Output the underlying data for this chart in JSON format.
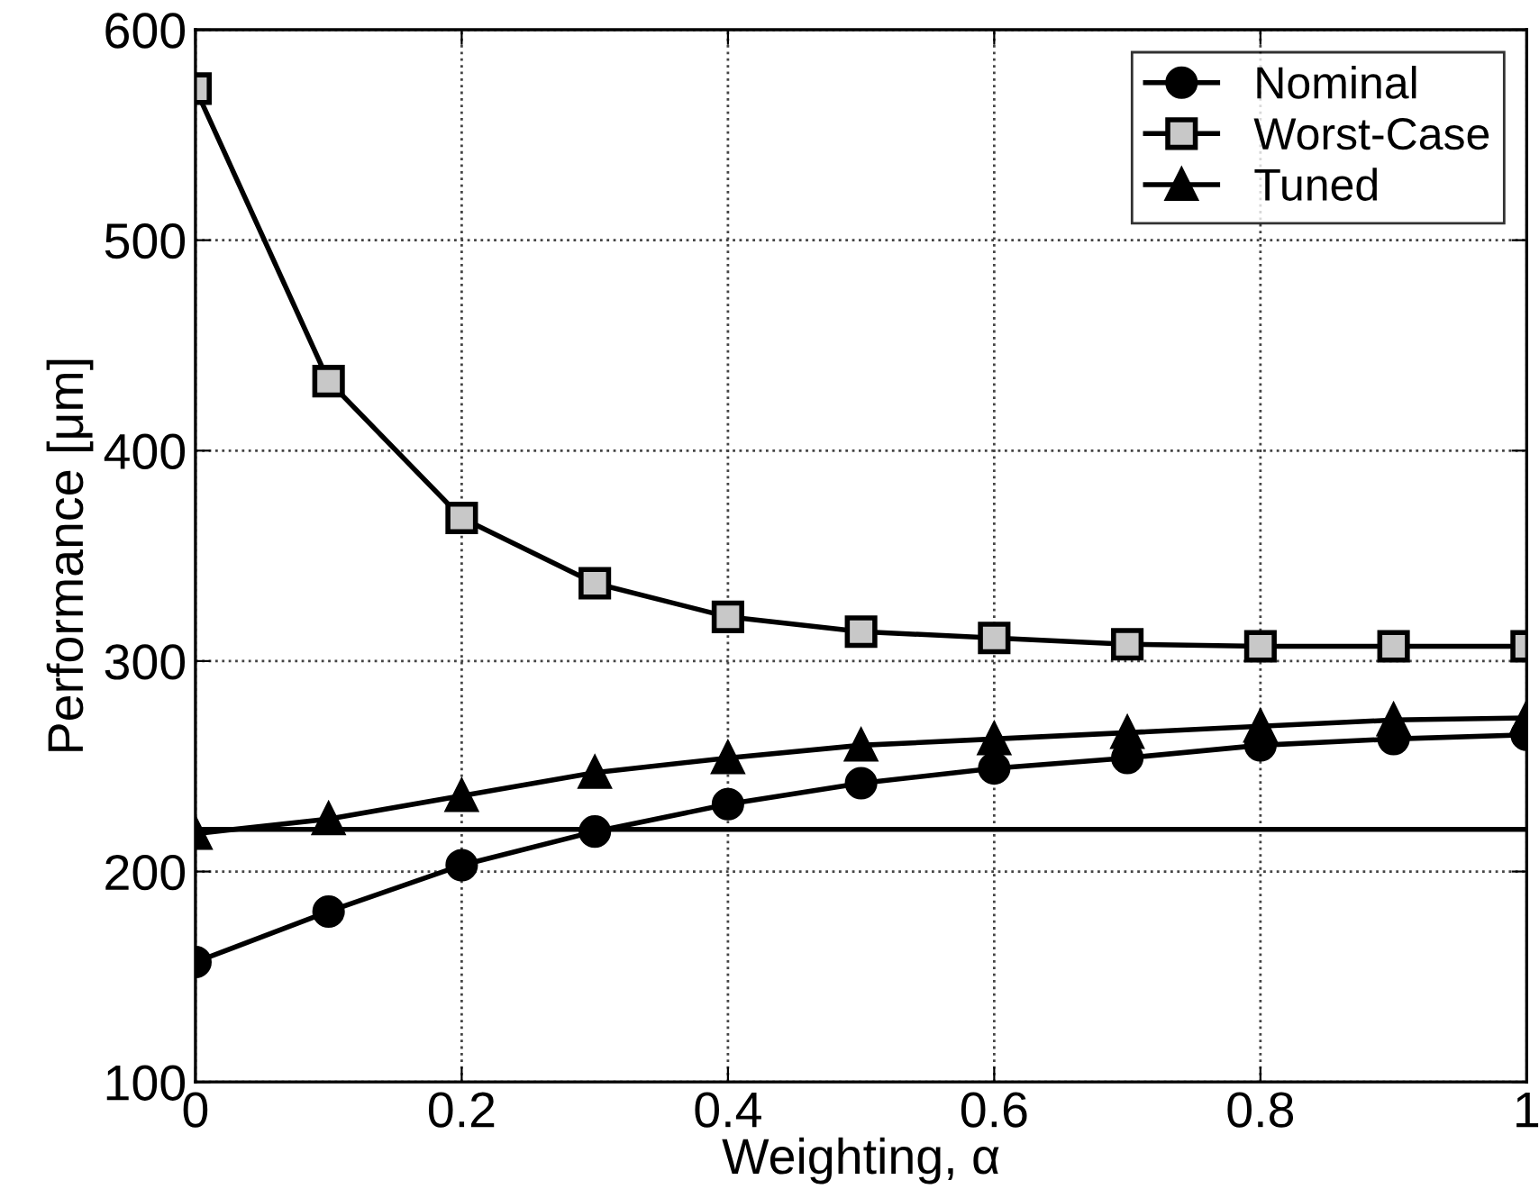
{
  "chart_data": {
    "type": "line",
    "xlabel": "Weighting, α",
    "ylabel": "Performance [μm]",
    "x": [
      0,
      0.1,
      0.2,
      0.3,
      0.4,
      0.5,
      0.6,
      0.7,
      0.8,
      0.9,
      1
    ],
    "series": [
      {
        "name": "Nominal",
        "color": "#000000",
        "marker": "circle",
        "values": [
          157,
          181,
          203,
          219,
          232,
          242,
          249,
          254,
          260,
          263,
          265
        ]
      },
      {
        "name": "Worst-Case",
        "color": "#000000",
        "marker": "square",
        "values": [
          572,
          433,
          368,
          337,
          321,
          314,
          311,
          308,
          307,
          307,
          307
        ]
      },
      {
        "name": "Tuned",
        "color": "#000000",
        "marker": "triangle",
        "values": [
          218,
          225,
          236,
          247,
          254,
          260,
          263,
          266,
          269,
          272,
          273
        ]
      }
    ],
    "ref_lines": [
      {
        "axis": "y",
        "value": 220,
        "label": null,
        "color": "#000000"
      }
    ],
    "xlim": [
      0,
      1
    ],
    "xticks": [
      0,
      0.2,
      0.4,
      0.6,
      0.8,
      1
    ],
    "ylim": [
      100,
      600
    ],
    "yticks": [
      100,
      200,
      300,
      400,
      500,
      600
    ],
    "grid": true,
    "legend": "top right",
    "line_style": "solid"
  }
}
